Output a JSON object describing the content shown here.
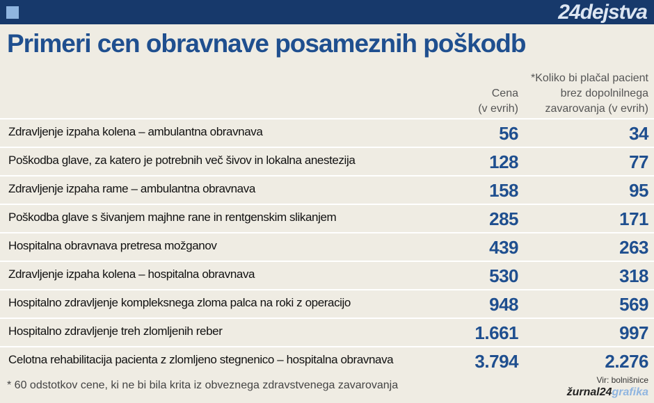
{
  "header": {
    "logo": "24dejstva"
  },
  "title": "Primeri cen obravnave posameznih poškodb",
  "table": {
    "columns": [
      {
        "lines": [
          "Cena",
          "(v evrih)"
        ]
      },
      {
        "lines": [
          "*Koliko bi plačal pacient",
          "brez dopolnilnega",
          "zavarovanja (v evrih)"
        ]
      }
    ],
    "rows": [
      [
        "Zdravljenje izpaha kolena – ambulantna obravnava",
        "56",
        "34"
      ],
      [
        "Poškodba glave, za katero je potrebnih več šivov in lokalna anestezija",
        "128",
        "77"
      ],
      [
        "Zdravljenje izpaha rame – ambulantna obravnava",
        "158",
        "95"
      ],
      [
        "Poškodba glave s šivanjem majhne rane in rentgenskim slikanjem",
        "285",
        "171"
      ],
      [
        "Hospitalna obravnava pretresa možganov",
        "439",
        "263"
      ],
      [
        "Zdravljenje izpaha kolena – hospitalna obravnava",
        "530",
        "318"
      ],
      [
        "Hospitalno zdravljenje kompleksnega zloma palca na roki z operacijo",
        "948",
        "569"
      ],
      [
        "Hospitalno zdravljenje treh zlomljenih reber",
        "1.661",
        "997"
      ],
      [
        "Celotna rehabilitacija pacienta z zlomljeno stegnenico – hospitalna obravnava",
        "3.794",
        "2.276"
      ]
    ]
  },
  "footer": {
    "note": "* 60 odstotkov cene, ki ne bi bila krita iz obveznega zdravstvenega zavarovanja",
    "source": "Vir: bolnišnice",
    "brand": [
      "žurnal24",
      "grafika"
    ]
  }
}
